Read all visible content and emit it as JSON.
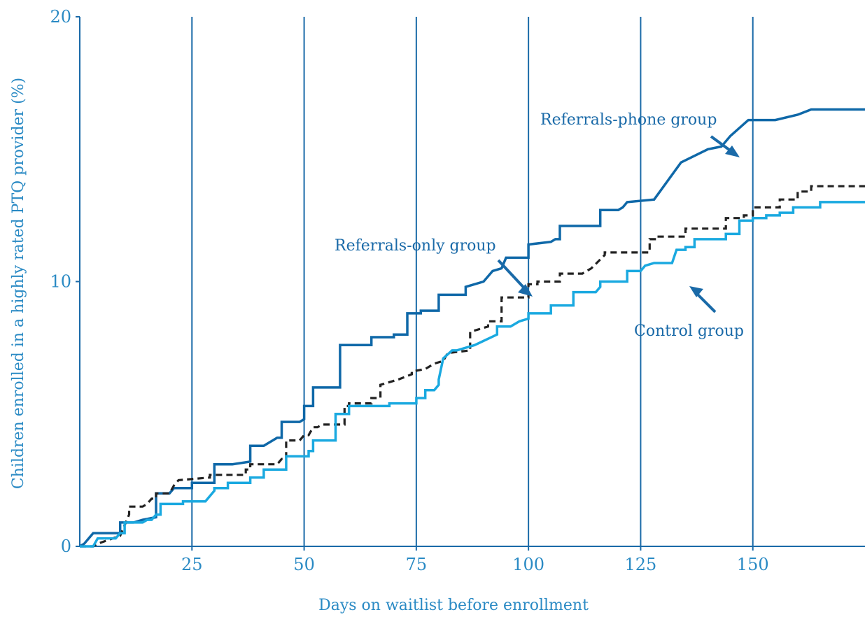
{
  "chart_data": {
    "type": "line",
    "title": "",
    "xlabel": "Days on waitlist before enrollment",
    "ylabel": "Children enrolled in a  highly rated PTQ provider (%)",
    "xlim": [
      0,
      175
    ],
    "ylim": [
      0,
      20
    ],
    "xticks": [
      25,
      50,
      75,
      100,
      125,
      150
    ],
    "xtick_labels": [
      "25",
      "50",
      "75",
      "100",
      "125",
      "150"
    ],
    "yticks": [
      0,
      10,
      20
    ],
    "ytick_labels": [
      "0",
      "10",
      "20"
    ],
    "grid": "vertical lines at x ticks",
    "legend": "none (inline annotations with arrows)",
    "series": [
      {
        "name": "Referrals-phone group",
        "style": "solid",
        "color": "#0f68a8",
        "x": [
          0,
          1,
          2,
          3,
          9,
          9,
          12,
          14,
          14,
          17,
          17,
          20,
          21,
          25,
          25,
          30,
          30,
          34,
          38,
          38,
          41,
          44,
          45,
          45,
          49,
          50,
          50,
          52,
          52,
          58,
          58,
          65,
          65,
          70,
          70,
          73,
          73,
          76,
          76,
          80,
          80,
          86,
          86,
          88,
          90,
          92,
          94,
          95,
          100,
          100,
          105,
          106,
          107,
          107,
          112,
          112,
          116,
          116,
          120,
          121,
          122,
          122,
          128,
          128,
          134,
          134,
          140,
          140,
          143,
          145,
          145,
          149,
          149,
          155,
          155,
          160,
          160,
          163,
          163,
          175
        ],
        "y": [
          0,
          0.1,
          0.3,
          0.5,
          0.5,
          0.9,
          0.9,
          1.0,
          1.0,
          1.1,
          2.0,
          2.0,
          2.2,
          2.2,
          2.4,
          2.4,
          3.1,
          3.1,
          3.2,
          3.8,
          3.8,
          4.1,
          4.1,
          4.7,
          4.7,
          4.8,
          5.3,
          5.3,
          6.0,
          6.0,
          7.6,
          7.6,
          7.9,
          7.9,
          8.0,
          8.0,
          8.8,
          8.8,
          8.9,
          8.9,
          9.5,
          9.5,
          9.8,
          9.9,
          10.0,
          10.4,
          10.5,
          10.9,
          10.9,
          11.4,
          11.5,
          11.6,
          11.6,
          12.1,
          12.1,
          12.1,
          12.1,
          12.7,
          12.7,
          12.8,
          13.0,
          13.0,
          13.1,
          13.1,
          14.5,
          14.5,
          15.0,
          15.0,
          15.1,
          15.5,
          15.5,
          16.1,
          16.1,
          16.1,
          16.1,
          16.3,
          16.3,
          16.5,
          16.5,
          16.5
        ]
      },
      {
        "name": "Referrals-only group",
        "style": "dashed",
        "color": "#222222",
        "x": [
          0,
          3,
          4,
          9,
          10,
          11,
          11,
          14,
          15,
          16,
          17,
          17,
          20,
          21,
          22,
          22,
          29,
          29,
          37,
          37,
          38,
          38,
          44,
          45,
          46,
          46,
          49,
          50,
          51,
          52,
          53,
          54,
          54,
          59,
          59,
          60,
          60,
          65,
          65,
          67,
          67,
          69,
          71,
          74,
          74,
          77,
          79,
          79,
          81,
          81,
          82,
          82,
          87,
          87,
          91,
          91,
          94,
          94,
          94,
          100,
          100,
          102,
          102,
          107,
          107,
          112,
          114,
          117,
          117,
          127,
          127,
          129,
          129,
          135,
          135,
          144,
          144,
          148,
          148,
          150,
          150,
          156,
          156,
          160,
          160,
          163,
          163,
          175
        ],
        "y": [
          0,
          0,
          0.1,
          0.4,
          0.8,
          1.2,
          1.5,
          1.5,
          1.6,
          1.8,
          1.8,
          2.0,
          2.0,
          2.3,
          2.5,
          2.5,
          2.6,
          2.7,
          2.7,
          2.9,
          2.9,
          3.1,
          3.1,
          3.3,
          3.3,
          4.0,
          4.0,
          4.2,
          4.2,
          4.5,
          4.5,
          4.6,
          4.6,
          4.6,
          5.3,
          5.3,
          5.4,
          5.4,
          5.6,
          5.6,
          6.1,
          6.2,
          6.3,
          6.5,
          6.6,
          6.7,
          6.9,
          6.9,
          7.0,
          7.0,
          7.3,
          7.3,
          7.4,
          8.1,
          8.3,
          8.5,
          8.5,
          9.3,
          9.4,
          9.4,
          9.9,
          9.9,
          10.0,
          10.0,
          10.3,
          10.3,
          10.5,
          11.0,
          11.1,
          11.1,
          11.6,
          11.6,
          11.7,
          11.7,
          12.0,
          12.0,
          12.4,
          12.4,
          12.5,
          12.5,
          12.8,
          12.8,
          13.1,
          13.1,
          13.4,
          13.4,
          13.6,
          13.6
        ]
      },
      {
        "name": "Control group",
        "style": "solid",
        "color": "#1aa9e0",
        "x": [
          0,
          3,
          4,
          8,
          9,
          10,
          10,
          14,
          15,
          16,
          17,
          18,
          18,
          23,
          23,
          28,
          30,
          30,
          33,
          33,
          38,
          38,
          41,
          41,
          46,
          46,
          51,
          51,
          52,
          52,
          57,
          57,
          60,
          60,
          69,
          69,
          75,
          75,
          77,
          77,
          79,
          80,
          80,
          81,
          83,
          84,
          88,
          88,
          93,
          93,
          96,
          98,
          100,
          100,
          105,
          105,
          110,
          110,
          115,
          116,
          116,
          122,
          122,
          125,
          126,
          128,
          132,
          133,
          135,
          135,
          137,
          137,
          144,
          144,
          147,
          147,
          150,
          150,
          153,
          153,
          156,
          156,
          159,
          159,
          165,
          165,
          175
        ],
        "y": [
          0,
          0,
          0.3,
          0.3,
          0.5,
          0.5,
          0.9,
          0.9,
          1.0,
          1.0,
          1.2,
          1.2,
          1.6,
          1.6,
          1.7,
          1.7,
          2.1,
          2.2,
          2.2,
          2.4,
          2.4,
          2.6,
          2.6,
          2.9,
          2.9,
          3.4,
          3.4,
          3.6,
          3.6,
          4.0,
          4.0,
          5.0,
          5.0,
          5.3,
          5.3,
          5.4,
          5.4,
          5.6,
          5.6,
          5.9,
          5.9,
          6.1,
          6.3,
          7.1,
          7.4,
          7.4,
          7.6,
          7.6,
          8.0,
          8.3,
          8.3,
          8.5,
          8.6,
          8.8,
          8.8,
          9.1,
          9.1,
          9.6,
          9.6,
          9.8,
          10.0,
          10.0,
          10.4,
          10.4,
          10.6,
          10.7,
          10.7,
          11.2,
          11.2,
          11.3,
          11.3,
          11.6,
          11.6,
          11.8,
          11.8,
          12.3,
          12.3,
          12.4,
          12.4,
          12.5,
          12.5,
          12.6,
          12.6,
          12.8,
          12.8,
          13.0,
          13.0
        ]
      }
    ],
    "annotations": [
      {
        "text": "Referrals-phone group",
        "series": "Referrals-phone group"
      },
      {
        "text": "Referrals-only group",
        "series": "Referrals-only group"
      },
      {
        "text": "Control group",
        "series": "Control group"
      }
    ]
  }
}
